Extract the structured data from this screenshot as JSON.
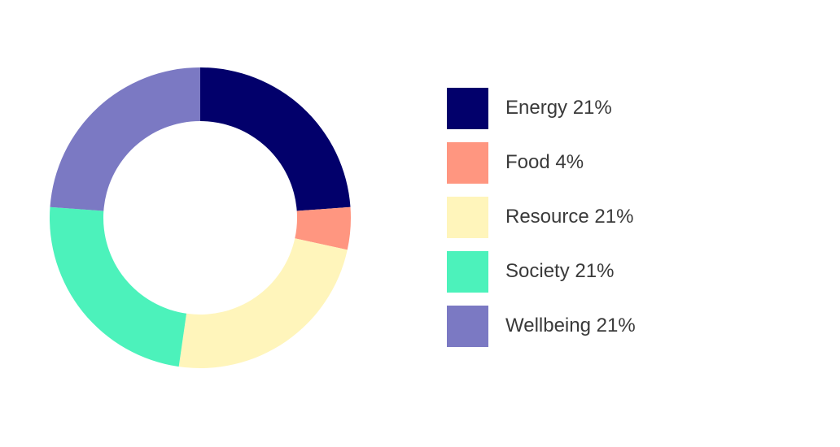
{
  "chart_data": {
    "type": "pie",
    "subtype": "donut",
    "series": [
      {
        "name": "Energy",
        "label": "Energy 21%",
        "value": 21,
        "color": "#02006b"
      },
      {
        "name": "Food",
        "label": "Food 4%",
        "value": 4,
        "color": "#ff9680"
      },
      {
        "name": "Resource",
        "label": "Resource 21%",
        "value": 21,
        "color": "#fff5bb"
      },
      {
        "name": "Society",
        "label": "Society 21%",
        "value": 21,
        "color": "#4cf2bb"
      },
      {
        "name": "Wellbeing",
        "label": "Wellbeing 21%",
        "value": 21,
        "color": "#7b79c3"
      }
    ],
    "legend_position": "right"
  }
}
